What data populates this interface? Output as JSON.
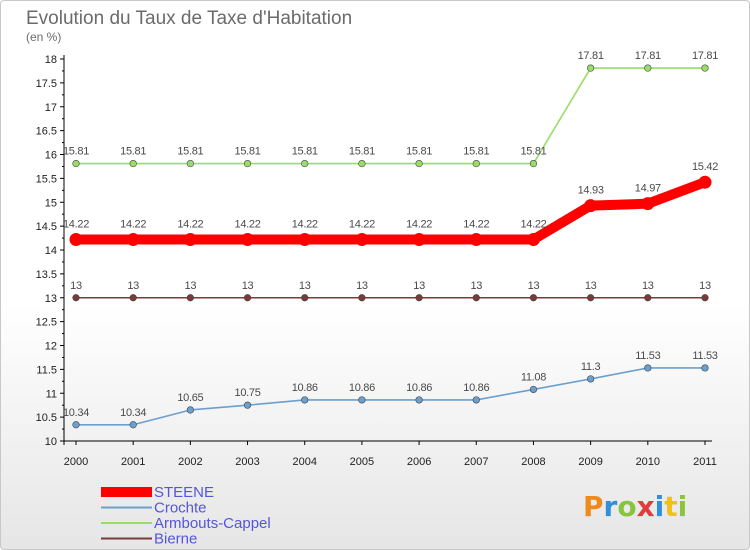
{
  "chart_data": {
    "type": "line",
    "title": "Evolution du Taux de Taxe d'Habitation",
    "subtitle": "(en %)",
    "x": [
      "2000",
      "2001",
      "2002",
      "2003",
      "2004",
      "2005",
      "2006",
      "2007",
      "2008",
      "2009",
      "2010",
      "2011"
    ],
    "ylim": [
      10,
      18
    ],
    "yticks": [
      "10",
      "10.5",
      "11",
      "11.5",
      "12",
      "12.5",
      "13",
      "13.5",
      "14",
      "14.5",
      "15",
      "15.5",
      "16",
      "16.5",
      "17",
      "17.5",
      "18"
    ],
    "grid": false,
    "legend_position": "bottom-left",
    "series": [
      {
        "name": "STEENE",
        "color": "#ff0000",
        "values": [
          14.22,
          14.22,
          14.22,
          14.22,
          14.22,
          14.22,
          14.22,
          14.22,
          14.22,
          14.93,
          14.97,
          15.42
        ],
        "labels": [
          "14.22",
          "14.22",
          "14.22",
          "14.22",
          "14.22",
          "14.22",
          "14.22",
          "14.22",
          "14.22",
          "14.93",
          "14.97",
          "15.42"
        ]
      },
      {
        "name": "Crochte",
        "color": "#6b9fcf",
        "values": [
          10.34,
          10.34,
          10.65,
          10.75,
          10.86,
          10.86,
          10.86,
          10.86,
          11.08,
          11.3,
          11.53,
          11.53
        ],
        "labels": [
          "10.34",
          "10.34",
          "10.65",
          "10.75",
          "10.86",
          "10.86",
          "10.86",
          "10.86",
          "11.08",
          "11.3",
          "11.53",
          "11.53"
        ]
      },
      {
        "name": "Armbouts-Cappel",
        "color": "#99dd66",
        "values": [
          15.81,
          15.81,
          15.81,
          15.81,
          15.81,
          15.81,
          15.81,
          15.81,
          15.81,
          17.81,
          17.81,
          17.81
        ],
        "labels": [
          "15.81",
          "15.81",
          "15.81",
          "15.81",
          "15.81",
          "15.81",
          "15.81",
          "15.81",
          "15.81",
          "17.81",
          "17.81",
          "17.81"
        ]
      },
      {
        "name": "Bierne",
        "color": "#7a3a3a",
        "values": [
          13,
          13,
          13,
          13,
          13,
          13,
          13,
          13,
          13,
          13,
          13,
          13
        ],
        "labels": [
          "13",
          "13",
          "13",
          "13",
          "13",
          "13",
          "13",
          "13",
          "13",
          "13",
          "13",
          "13"
        ]
      }
    ]
  },
  "logo": {
    "text": "Proxiti",
    "colors": [
      "#f08a1c",
      "#2f8fd8",
      "#8ac43f",
      "#e23c3c",
      "#2f8fd8",
      "#f0c01c",
      "#8ac43f"
    ]
  }
}
